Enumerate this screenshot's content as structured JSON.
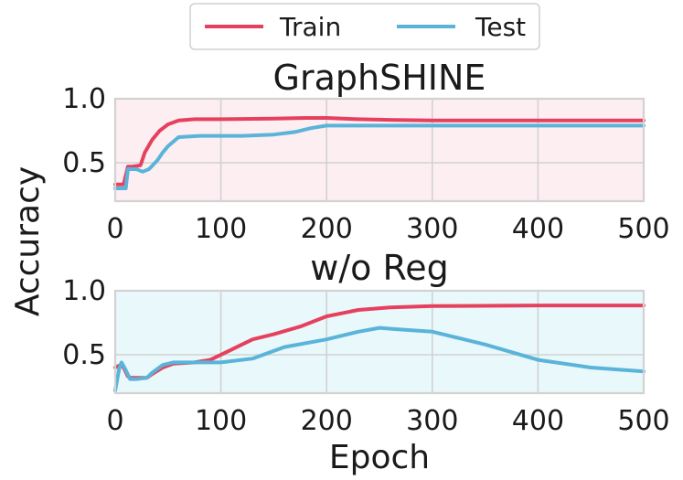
{
  "legend": {
    "entries": [
      {
        "name": "Train",
        "color": "#e5415f"
      },
      {
        "name": "Test",
        "color": "#5ab4d9"
      }
    ]
  },
  "shared_labels": {
    "ylabel": "Accuracy",
    "xlabel": "Epoch"
  },
  "chart_data": [
    {
      "type": "line",
      "title": "GraphSHINE",
      "xlim": [
        0,
        500
      ],
      "ylim": [
        0.2,
        1.0
      ],
      "xticks": [
        0,
        100,
        200,
        300,
        400,
        500
      ],
      "yticks": [
        0.5,
        1.0
      ],
      "ytick_labels": [
        "0.5",
        "1.0"
      ],
      "grid": true,
      "background": "#fdeef2",
      "series": [
        {
          "name": "Train",
          "color": "#e5415f",
          "x": [
            0,
            8,
            12,
            16,
            24,
            28,
            35,
            42,
            50,
            60,
            75,
            100,
            150,
            180,
            200,
            230,
            260,
            300,
            400,
            500
          ],
          "y": [
            0.33,
            0.33,
            0.47,
            0.47,
            0.48,
            0.58,
            0.68,
            0.75,
            0.8,
            0.83,
            0.84,
            0.84,
            0.845,
            0.85,
            0.85,
            0.84,
            0.835,
            0.83,
            0.83,
            0.83
          ]
        },
        {
          "name": "Test",
          "color": "#5ab4d9",
          "x": [
            0,
            10,
            12,
            20,
            26,
            32,
            40,
            45,
            50,
            60,
            80,
            120,
            150,
            170,
            185,
            200,
            230,
            300,
            400,
            500
          ],
          "y": [
            0.3,
            0.3,
            0.45,
            0.45,
            0.43,
            0.45,
            0.52,
            0.58,
            0.63,
            0.7,
            0.71,
            0.71,
            0.72,
            0.74,
            0.77,
            0.79,
            0.79,
            0.79,
            0.79,
            0.79
          ]
        }
      ]
    },
    {
      "type": "line",
      "title": "w/o Reg",
      "xlim": [
        0,
        500
      ],
      "ylim": [
        0.2,
        1.0
      ],
      "xticks": [
        0,
        100,
        200,
        300,
        400,
        500
      ],
      "yticks": [
        0.5,
        1.0
      ],
      "ytick_labels": [
        "0.5",
        "1.0"
      ],
      "grid": true,
      "background": "#e8f8fb",
      "series": [
        {
          "name": "Train",
          "color": "#e5415f",
          "x": [
            0,
            5,
            8,
            12,
            15,
            20,
            30,
            35,
            45,
            55,
            75,
            90,
            110,
            130,
            150,
            175,
            200,
            230,
            260,
            300,
            400,
            500
          ],
          "y": [
            0.4,
            0.42,
            0.4,
            0.33,
            0.32,
            0.32,
            0.32,
            0.35,
            0.4,
            0.43,
            0.44,
            0.46,
            0.54,
            0.62,
            0.66,
            0.72,
            0.8,
            0.85,
            0.87,
            0.88,
            0.885,
            0.885
          ]
        },
        {
          "name": "Test",
          "color": "#5ab4d9",
          "x": [
            0,
            4,
            6,
            10,
            14,
            20,
            30,
            35,
            45,
            55,
            75,
            100,
            130,
            160,
            200,
            230,
            250,
            265,
            300,
            350,
            400,
            450,
            500
          ],
          "y": [
            0.22,
            0.4,
            0.44,
            0.38,
            0.31,
            0.31,
            0.32,
            0.36,
            0.42,
            0.44,
            0.44,
            0.44,
            0.47,
            0.56,
            0.62,
            0.68,
            0.71,
            0.7,
            0.68,
            0.58,
            0.46,
            0.4,
            0.37
          ]
        }
      ]
    }
  ]
}
